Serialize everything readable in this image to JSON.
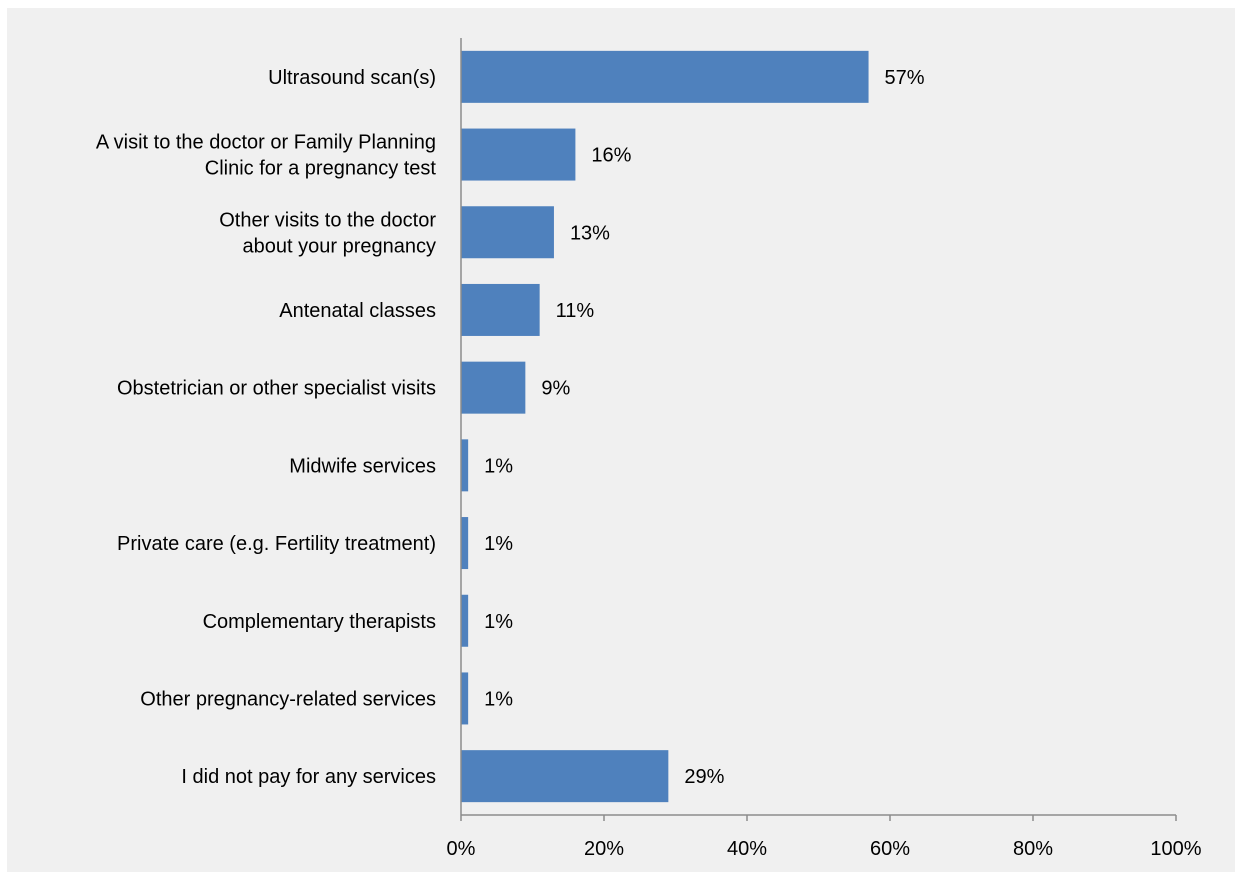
{
  "chart_data": {
    "type": "bar",
    "orientation": "horizontal",
    "title": "",
    "xlabel": "",
    "ylabel": "",
    "categories": [
      [
        "Ultrasound scan(s)"
      ],
      [
        "A visit to the doctor or Family Planning",
        "Clinic for a pregnancy test"
      ],
      [
        "Other visits to the doctor",
        "about your pregnancy"
      ],
      [
        "Antenatal classes"
      ],
      [
        "Obstetrician or other specialist visits"
      ],
      [
        "Midwife services"
      ],
      [
        "Private care (e.g. Fertility treatment)"
      ],
      [
        "Complementary therapists"
      ],
      [
        "Other pregnancy-related services"
      ],
      [
        "I did not pay for any services"
      ]
    ],
    "values": [
      57,
      16,
      13,
      11,
      9,
      1,
      1,
      1,
      1,
      29
    ],
    "value_labels": [
      "57%",
      "16%",
      "13%",
      "11%",
      "9%",
      "1%",
      "1%",
      "1%",
      "1%",
      "29%"
    ],
    "xlim": [
      0,
      100
    ],
    "xticks": [
      0,
      20,
      40,
      60,
      80,
      100
    ],
    "xtick_labels": [
      "0%",
      "20%",
      "40%",
      "60%",
      "80%",
      "100%"
    ],
    "grid": false,
    "legend": "none",
    "colors": {
      "bar": "#4f81bd",
      "background": "#f0f0f0",
      "axis": "#8c8c8c",
      "text": "#000000"
    }
  }
}
